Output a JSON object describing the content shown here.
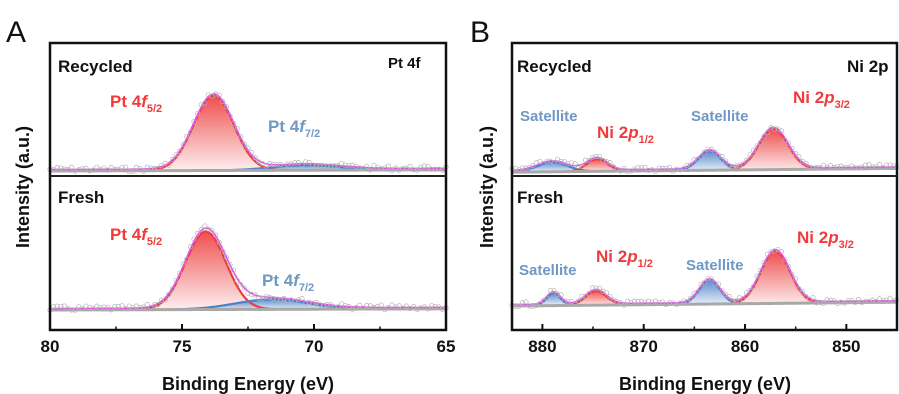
{
  "chart_data": [
    {
      "type": "line",
      "panel_letter": "A",
      "element": "Pt 4f",
      "xlabel": "Binding Energy (eV)",
      "ylabel": "Intensity (a.u.)",
      "xlim": [
        80,
        65
      ],
      "x_ticks": [
        80,
        75,
        70,
        65
      ],
      "x_ticks_labels": [
        "80",
        "75",
        "70",
        "65"
      ],
      "grid": false,
      "colors": {
        "p1": "#ee3b3b",
        "p2": "#4a82c8",
        "envelope": "#e050e8",
        "baseline": "#a8a8a8"
      },
      "subpanels": [
        {
          "name": "Recycled",
          "baseline": 3.0,
          "peaks": [
            {
              "label_base": "Pt 4",
              "label_sym": "f",
              "label_sub": "5/2",
              "center": 73.8,
              "height": 75,
              "fwhm": 1.8,
              "color": "#ee3b3b"
            },
            {
              "label_base": "Pt 4",
              "label_sym": "f",
              "label_sub": "7/2",
              "center": 70.3,
              "height": 5,
              "fwhm": 3.0,
              "color": "#4a82c8"
            }
          ]
        },
        {
          "name": "Fresh",
          "baseline": 0,
          "peaks": [
            {
              "label_base": "Pt 4",
              "label_sym": "f",
              "label_sub": "5/2",
              "center": 74.1,
              "height": 78,
              "fwhm": 1.8,
              "color": "#ee3b3b"
            },
            {
              "label_base": "Pt 4",
              "label_sym": "f",
              "label_sub": "7/2",
              "center": 71.6,
              "height": 10,
              "fwhm": 3.2,
              "color": "#4a82c8"
            }
          ]
        }
      ]
    },
    {
      "type": "line",
      "panel_letter": "B",
      "element": "Ni 2p",
      "xlabel": "Binding Energy (eV)",
      "ylabel": "Intensity (a.u.)",
      "xlim": [
        883,
        845
      ],
      "x_ticks": [
        880,
        870,
        860,
        850
      ],
      "x_ticks_labels": [
        "880",
        "870",
        "860",
        "850"
      ],
      "grid": false,
      "colors": {
        "p1": "#ee3b3b",
        "p2": "#4a82c8",
        "envelope": "#e050e8",
        "baseline": "#a8a8a8"
      },
      "subpanels": [
        {
          "name": "Recycled",
          "baseline": 4,
          "peaks": [
            {
              "label": "Satellite",
              "center": 879.0,
              "height": 10,
              "fwhm": 3.5,
              "color": "#4a82c8"
            },
            {
              "label_base": "Ni 2",
              "label_sym": "p",
              "label_sub": "1/2",
              "center": 874.6,
              "height": 13,
              "fwhm": 2.4,
              "color": "#ee3b3b"
            },
            {
              "label": "Satellite",
              "center": 863.5,
              "height": 20,
              "fwhm": 2.6,
              "color": "#4a82c8"
            },
            {
              "label_base": "Ni 2",
              "label_sym": "p",
              "label_sub": "3/2",
              "center": 857.2,
              "height": 43,
              "fwhm": 3.4,
              "color": "#ee3b3b"
            }
          ]
        },
        {
          "name": "Fresh",
          "baseline": 0,
          "peaks": [
            {
              "label": "Satellite",
              "center": 878.9,
              "height": 13,
              "fwhm": 1.6,
              "color": "#4a82c8"
            },
            {
              "label_base": "Ni 2",
              "label_sym": "p",
              "label_sub": "1/2",
              "center": 874.7,
              "height": 15,
              "fwhm": 2.4,
              "color": "#ee3b3b"
            },
            {
              "label": "Satellite",
              "center": 863.5,
              "height": 25,
              "fwhm": 2.4,
              "color": "#4a82c8"
            },
            {
              "label_base": "Ni 2",
              "label_sym": "p",
              "label_sub": "3/2",
              "center": 857.0,
              "height": 55,
              "fwhm": 3.4,
              "color": "#ee3b3b"
            }
          ]
        }
      ]
    }
  ]
}
